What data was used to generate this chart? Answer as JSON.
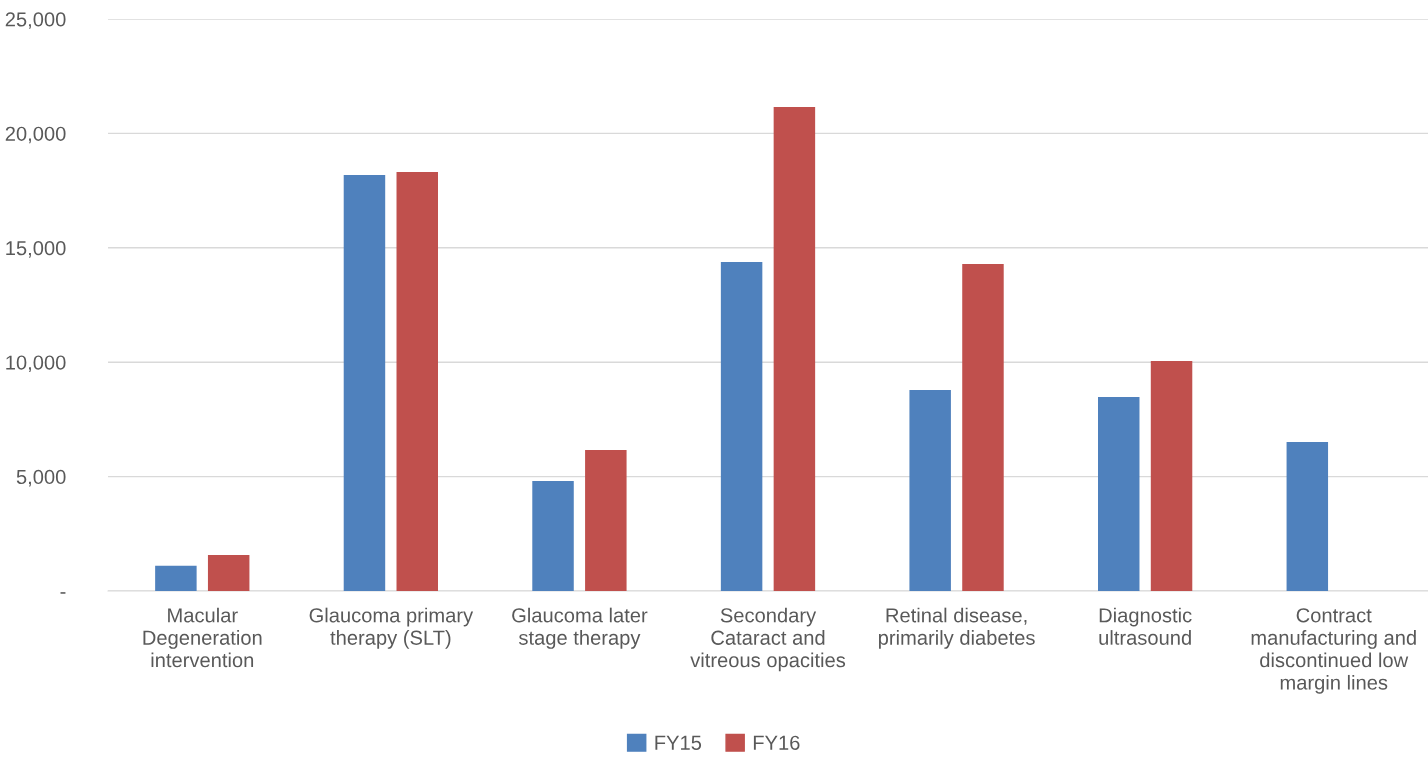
{
  "chart_data": {
    "type": "bar",
    "categories": [
      "Macular\nDegeneration\nintervention",
      "Glaucoma primary\ntherapy (SLT)",
      "Glaucoma later\nstage therapy",
      "Secondary\nCataract and\nvitreous opacities",
      "Retinal disease,\nprimarily diabetes",
      "Diagnostic\nultrasound",
      "Contract\nmanufacturing and\ndiscontinued low\nmargin lines"
    ],
    "series": [
      {
        "name": "FY15",
        "color": "#4f81bd",
        "values": [
          1100,
          18180,
          4810,
          14380,
          8780,
          8480,
          6510
        ]
      },
      {
        "name": "FY16",
        "color": "#c0504d",
        "values": [
          1570,
          18310,
          6160,
          21150,
          14290,
          10050,
          null
        ]
      }
    ],
    "ylim": [
      0,
      25000
    ],
    "yticks": [
      {
        "value": 0,
        "label": "-"
      },
      {
        "value": 5000,
        "label": "5,000"
      },
      {
        "value": 10000,
        "label": "10,000"
      },
      {
        "value": 15000,
        "label": "15,000"
      },
      {
        "value": 20000,
        "label": "20,000"
      },
      {
        "value": 25000,
        "label": "25,000"
      }
    ],
    "grid": "y",
    "legend": "bottom"
  }
}
